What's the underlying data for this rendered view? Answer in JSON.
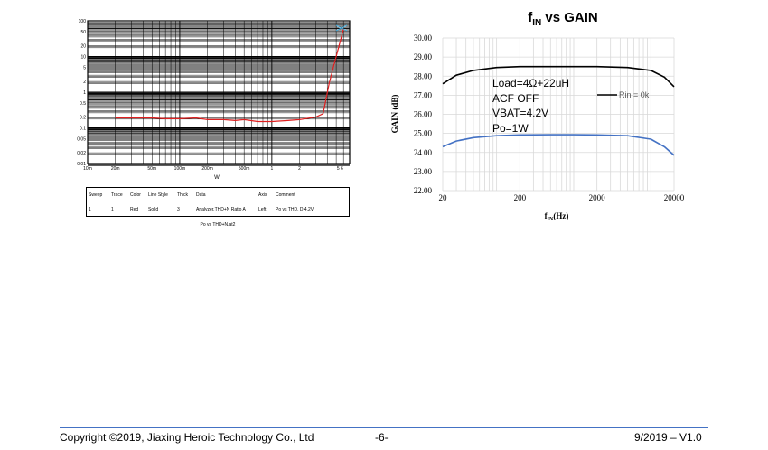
{
  "chart_data": [
    {
      "type": "line",
      "title": "",
      "xlabel": "W",
      "ylabel": "%",
      "xscale": "log",
      "yscale": "log",
      "xlim": [
        0.01,
        7
      ],
      "ylim": [
        0.01,
        100
      ],
      "x_tick_labels": [
        "10m",
        "20m",
        "50m",
        "100m",
        "200m",
        "500m",
        "1",
        "2",
        "5 6"
      ],
      "y_tick_labels": [
        "100",
        "50",
        "20",
        "10",
        "5",
        "2",
        "1",
        "0.5",
        "0.2",
        "0.1",
        "0.05",
        "0.02",
        "0.01"
      ],
      "grid": true,
      "series": [
        {
          "color": "#e02020",
          "x": [
            0.02,
            0.03,
            0.05,
            0.07,
            0.1,
            0.15,
            0.2,
            0.3,
            0.4,
            0.5,
            0.7,
            1.0,
            1.5,
            2.0,
            3.0,
            3.6,
            3.8,
            4.2,
            5.0,
            6.0
          ],
          "y": [
            0.19,
            0.19,
            0.19,
            0.18,
            0.18,
            0.19,
            0.17,
            0.17,
            0.16,
            0.17,
            0.15,
            0.15,
            0.16,
            0.17,
            0.2,
            0.25,
            0.5,
            1.8,
            10,
            60
          ]
        }
      ],
      "legend_table": {
        "headers": [
          "Sweep",
          "Trace",
          "Color",
          "Line Style",
          "Thick",
          "Data",
          "Axis",
          "Comment"
        ],
        "rows": [
          [
            "1",
            "1",
            "Red",
            "Solid",
            "3",
            "Analyzer.THD+N Ratio A",
            "Left",
            "Po vs THD, D,4.2V"
          ]
        ]
      },
      "file_caption": "Po vs THD+N.at2"
    },
    {
      "type": "line",
      "title": "f",
      "title_sub": "IN",
      "title_rest": " vs GAIN",
      "xlabel": "f",
      "xlabel_sub": "IN",
      "xlabel_rest": "(Hz)",
      "ylabel": "GAIN (dB)",
      "xscale": "log",
      "xlim": [
        20,
        20000
      ],
      "ylim": [
        22,
        30
      ],
      "x_tick_labels": [
        "20",
        "200",
        "2000",
        "20000"
      ],
      "y_tick_labels": [
        "22.00",
        "23.00",
        "24.00",
        "25.00",
        "26.00",
        "27.00",
        "28.00",
        "29.00",
        "30.00"
      ],
      "grid": true,
      "annotations": [
        "Load=4Ω+22uH",
        "ACF OFF",
        "VBAT=4.2V",
        "Po=1W"
      ],
      "series": [
        {
          "name": "Rin = 0k",
          "color": "#000000",
          "x": [
            20,
            30,
            50,
            100,
            200,
            500,
            1000,
            2000,
            5000,
            10000,
            15000,
            20000
          ],
          "y": [
            27.6,
            28.05,
            28.3,
            28.45,
            28.5,
            28.5,
            28.5,
            28.5,
            28.45,
            28.3,
            27.95,
            27.45
          ]
        },
        {
          "color": "#4472c4",
          "x": [
            20,
            30,
            50,
            100,
            200,
            500,
            1000,
            2000,
            5000,
            10000,
            15000,
            20000
          ],
          "y": [
            24.3,
            24.6,
            24.78,
            24.88,
            24.92,
            24.93,
            24.93,
            24.92,
            24.88,
            24.7,
            24.3,
            23.85
          ]
        }
      ]
    }
  ],
  "footer": {
    "copyright": "Copyright ©2019, Jiaxing Heroic Technology Co., Ltd",
    "page": "-6-",
    "version": "9/2019 – V1.0"
  }
}
